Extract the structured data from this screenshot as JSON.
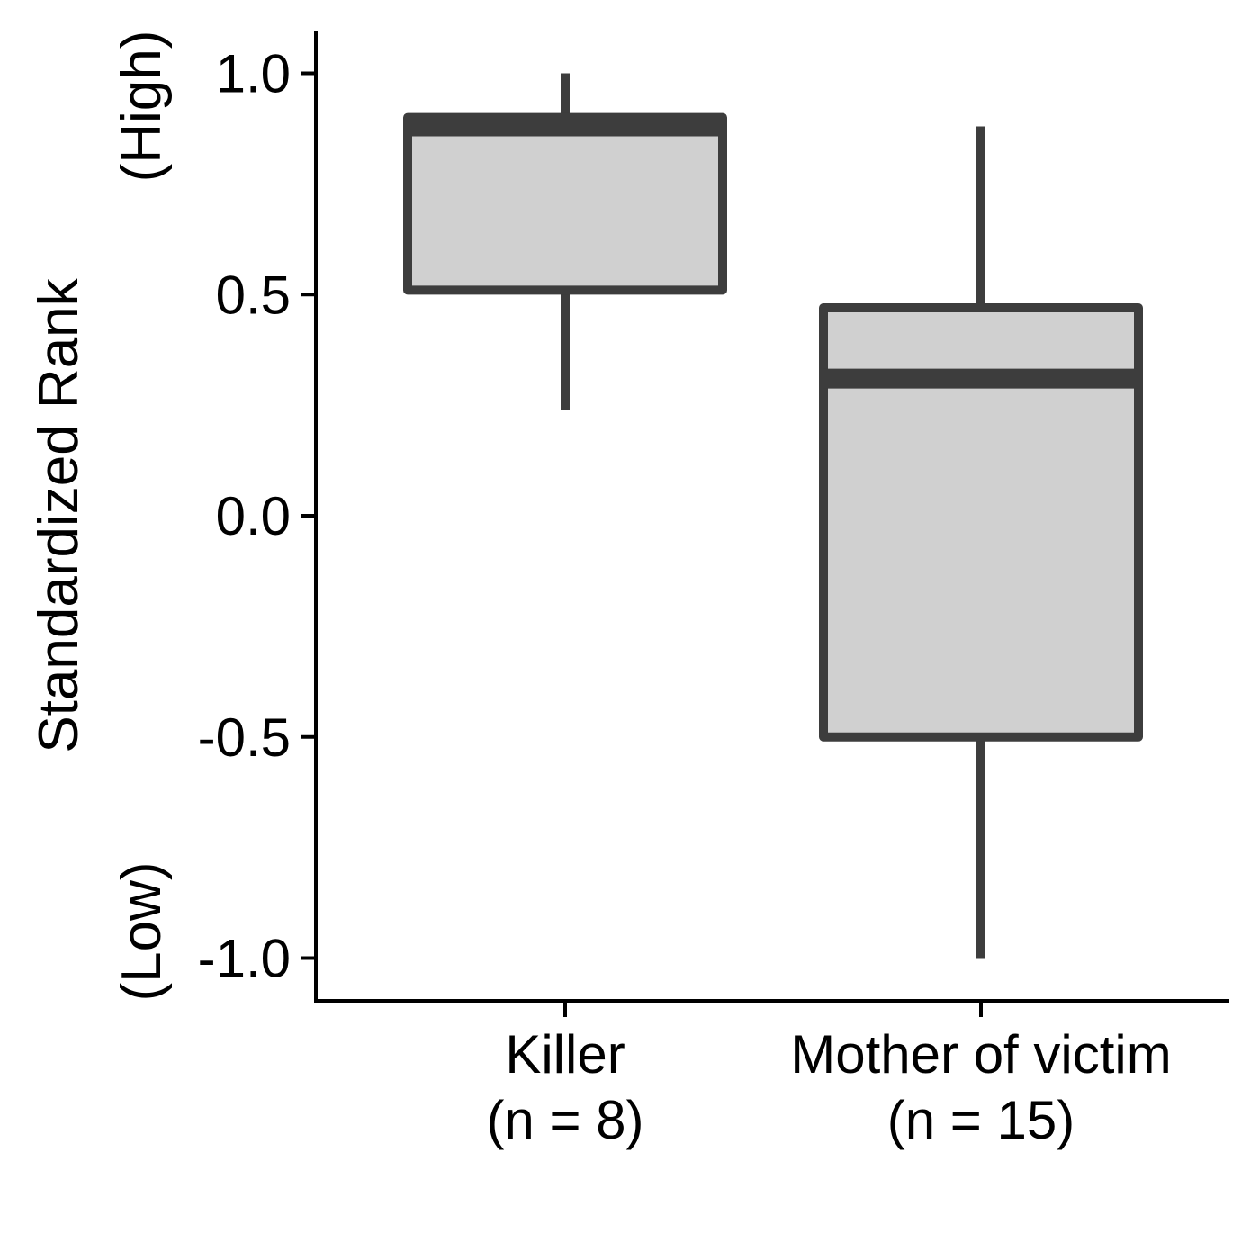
{
  "chart_data": {
    "type": "boxplot",
    "title": "",
    "ylabel": "Standardized Rank",
    "ylabel_high": "(High)",
    "ylabel_low": "(Low)",
    "xlabel": "",
    "ylim": [
      -1.1,
      1.1
    ],
    "yticks": [
      -1.0,
      -0.5,
      0.0,
      0.5,
      1.0
    ],
    "ytick_labels": [
      "-1.0",
      "-0.5",
      "0.0",
      "0.5",
      "1.0"
    ],
    "grid": false,
    "legend": "none",
    "box_fill": "#d0d0d0",
    "line_color": "#3d3d3d",
    "categories": [
      {
        "name": "Killer",
        "n_label": "(n = 8)",
        "min": 0.24,
        "q1": 0.51,
        "median": 0.88,
        "q3": 0.9,
        "max": 1.0
      },
      {
        "name": "Mother of victim",
        "n_label": "(n = 15)",
        "min": -1.0,
        "q1": -0.5,
        "median": 0.31,
        "q3": 0.47,
        "max": 0.88
      }
    ]
  }
}
